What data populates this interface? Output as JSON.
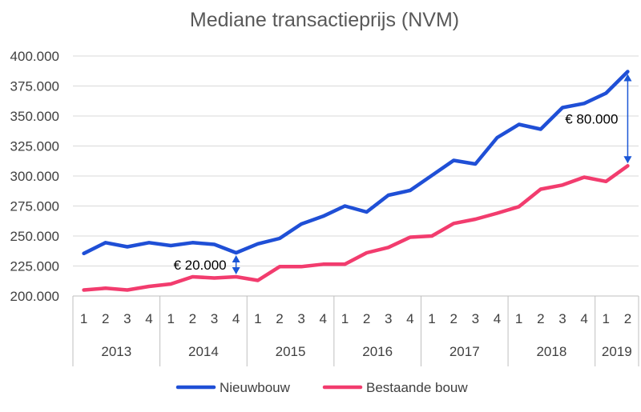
{
  "chart_data": {
    "type": "line",
    "title": "Mediane transactieprijs (NVM)",
    "xlabel": "",
    "ylabel": "",
    "ylim": [
      200000,
      400000
    ],
    "yticks": [
      200000,
      225000,
      250000,
      275000,
      300000,
      325000,
      350000,
      375000,
      400000
    ],
    "ytick_labels": [
      "200.000",
      "225.000",
      "250.000",
      "275.000",
      "300.000",
      "325.000",
      "350.000",
      "375.000",
      "400.000"
    ],
    "grid": true,
    "legend_position": "bottom",
    "x_quarters": [
      "1",
      "2",
      "3",
      "4",
      "1",
      "2",
      "3",
      "4",
      "1",
      "2",
      "3",
      "4",
      "1",
      "2",
      "3",
      "4",
      "1",
      "2",
      "3",
      "4",
      "1",
      "2",
      "3",
      "4",
      "1",
      "2"
    ],
    "x_years": [
      {
        "label": "2013",
        "count": 4
      },
      {
        "label": "2014",
        "count": 4
      },
      {
        "label": "2015",
        "count": 4
      },
      {
        "label": "2016",
        "count": 4
      },
      {
        "label": "2017",
        "count": 4
      },
      {
        "label": "2018",
        "count": 4
      },
      {
        "label": "2019",
        "count": 2
      }
    ],
    "series": [
      {
        "name": "Nieuwbouw",
        "color": "#1f4fd6",
        "values": [
          235500,
          244500,
          241000,
          244500,
          242000,
          244500,
          243000,
          236000,
          243500,
          248000,
          260000,
          266500,
          275000,
          270000,
          284000,
          288000,
          300500,
          313000,
          310000,
          332000,
          343000,
          339000,
          357000,
          360500,
          369000,
          387000
        ]
      },
      {
        "name": "Bestaande bouw",
        "color": "#f23c6e",
        "values": [
          205000,
          206500,
          205000,
          208000,
          210000,
          216000,
          215000,
          216000,
          213000,
          224500,
          224500,
          226500,
          226500,
          236000,
          240500,
          249000,
          250000,
          260500,
          264000,
          269000,
          274500,
          289000,
          292500,
          299000,
          295500,
          308500
        ]
      }
    ],
    "annotations": [
      {
        "text": "€ 20.000",
        "x_index": 7,
        "from": 216000,
        "to": 236000
      },
      {
        "text": "€ 80.000",
        "x_index": 25,
        "from": 308500,
        "to": 387000
      }
    ]
  }
}
